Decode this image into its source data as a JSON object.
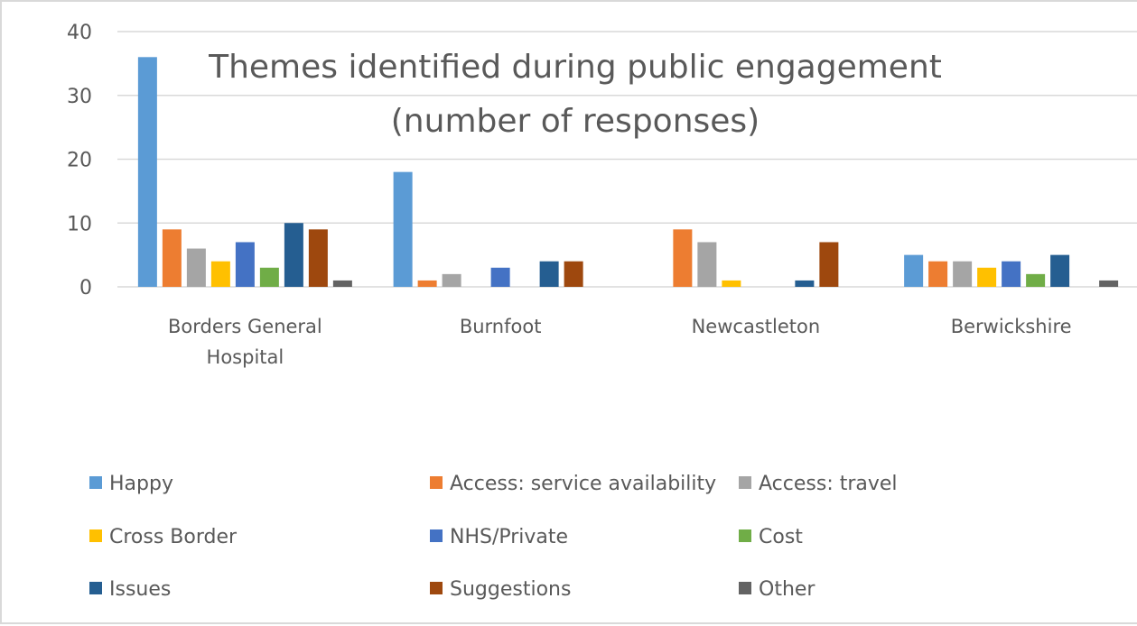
{
  "chart_data": {
    "type": "bar",
    "title": "Themes identified during public engagement",
    "subtitle": "(number of responses)",
    "categories": [
      "Borders General Hospital",
      "Burnfoot",
      "Newcastleton",
      "Berwickshire"
    ],
    "category_lines": [
      [
        "Borders General",
        "Hospital"
      ],
      [
        "Burnfoot"
      ],
      [
        "Newcastleton"
      ],
      [
        "Berwickshire"
      ]
    ],
    "ylim": [
      0,
      40
    ],
    "yticks": [
      "0",
      "10",
      "20",
      "30",
      "40"
    ],
    "grid": true,
    "legend_position": "bottom",
    "series": [
      {
        "name": "Happy",
        "color": "#5b9bd5",
        "values": [
          36,
          18,
          0,
          5
        ]
      },
      {
        "name": "Access: service availability",
        "color": "#ed7d31",
        "values": [
          9,
          1,
          9,
          4
        ]
      },
      {
        "name": "Access: travel",
        "color": "#a5a5a5",
        "values": [
          6,
          2,
          7,
          4
        ]
      },
      {
        "name": "Cross Border",
        "color": "#ffc000",
        "values": [
          4,
          0,
          1,
          3
        ]
      },
      {
        "name": "NHS/Private",
        "color": "#4472c4",
        "values": [
          7,
          3,
          0,
          4
        ]
      },
      {
        "name": "Cost",
        "color": "#70ad47",
        "values": [
          3,
          0,
          0,
          2
        ]
      },
      {
        "name": "Issues",
        "color": "#255e91",
        "values": [
          10,
          4,
          1,
          5
        ]
      },
      {
        "name": "Suggestions",
        "color": "#9e480e",
        "values": [
          9,
          4,
          7,
          0
        ]
      },
      {
        "name": "Other",
        "color": "#636363",
        "values": [
          1,
          0,
          0,
          1
        ]
      }
    ]
  }
}
